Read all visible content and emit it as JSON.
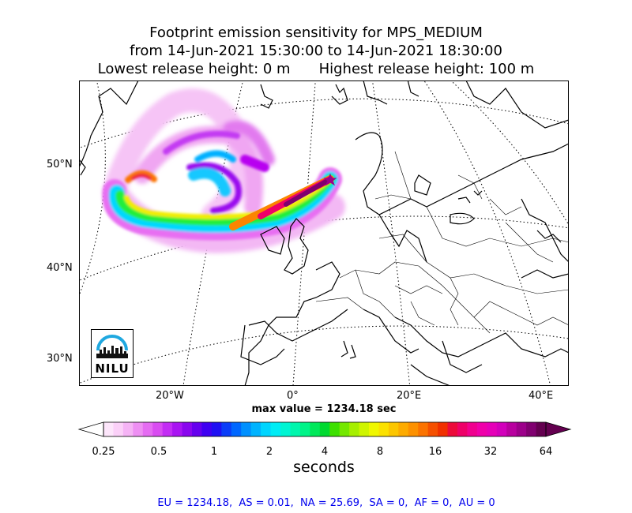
{
  "title": {
    "line1": "Footprint emission sensitivity for MPS_MEDIUM",
    "line2": "from 14-Jun-2021 15:30:00 to 14-Jun-2021 18:30:00",
    "line3_left": "Lowest release height: 0 m",
    "line3_right": "Highest release height: 100 m"
  },
  "map": {
    "lat_labels": [
      "50°N",
      "40°N",
      "30°N"
    ],
    "lon_labels": [
      "20°W",
      "0°",
      "20°E",
      "40°E"
    ],
    "logo_text": "NILU",
    "logo_color": "#1fa8e0",
    "release_marker_symbol": "star"
  },
  "max_value_text": "max value = 1234.18 sec",
  "colorbar": {
    "ticks": [
      "0.25",
      "0.5",
      "1",
      "2",
      "4",
      "8",
      "16",
      "32",
      "64"
    ],
    "label": "seconds",
    "colors": [
      "#fde6fb",
      "#fbd0f8",
      "#f5b3f5",
      "#ee8ff3",
      "#e56cf2",
      "#d94cf1",
      "#c32df4",
      "#a914f2",
      "#8a06ee",
      "#6600ee",
      "#3f00f2",
      "#1f10f3",
      "#0b3df8",
      "#0067ff",
      "#0090ff",
      "#00b3ff",
      "#00d5ff",
      "#00ecf5",
      "#00f5d3",
      "#00f6ad",
      "#00f488",
      "#00e85a",
      "#00d930",
      "#3de000",
      "#74e800",
      "#a6ef00",
      "#cff500",
      "#f0f700",
      "#fbe100",
      "#fcc600",
      "#fdab00",
      "#fd9100",
      "#fb7300",
      "#f55000",
      "#f03000",
      "#ec0a3a",
      "#ee0068",
      "#f0008f",
      "#ef00aa",
      "#e500b8",
      "#d200bb",
      "#b8009f",
      "#9c008a",
      "#800070",
      "#640050"
    ]
  },
  "stats_text": "EU = 1234.18,  AS = 0.01,  NA = 25.69,  SA = 0,  AF = 0,  AU = 0"
}
